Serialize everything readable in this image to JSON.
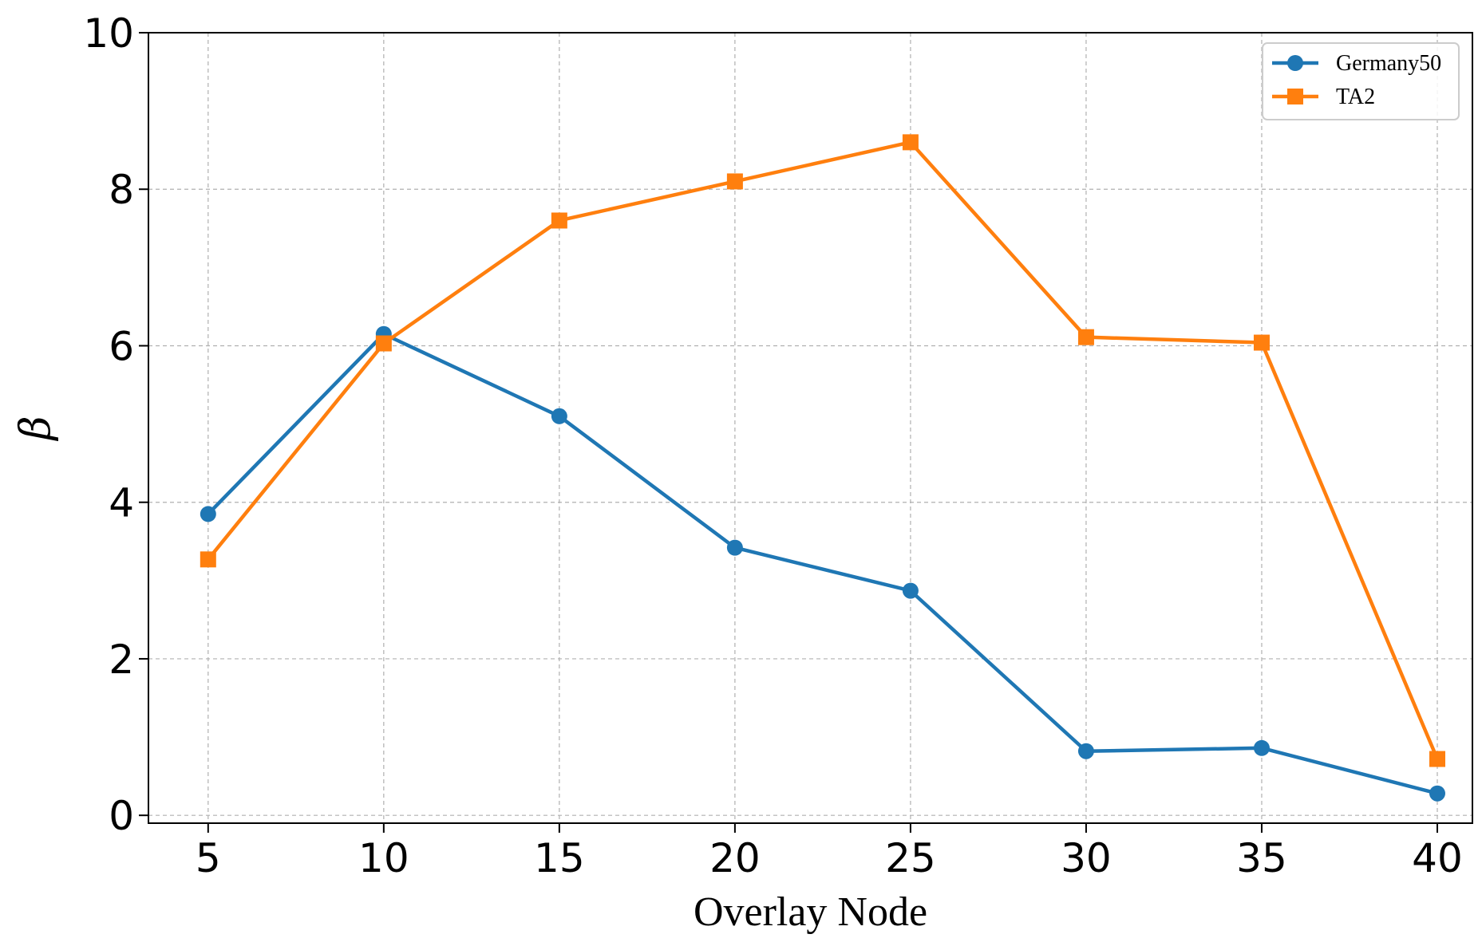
{
  "chart_data": {
    "type": "line",
    "title": "",
    "xlabel": "Overlay Node",
    "ylabel": "β",
    "x": [
      5,
      10,
      15,
      20,
      25,
      30,
      35,
      40
    ],
    "xlim": [
      3.3,
      41
    ],
    "ylim": [
      -0.1,
      10
    ],
    "xticks": [
      5,
      10,
      15,
      20,
      25,
      30,
      35,
      40
    ],
    "yticks": [
      0,
      2,
      4,
      6,
      8,
      10
    ],
    "grid": true,
    "legend_position": "top-right",
    "series": [
      {
        "name": "Germany50",
        "color": "#1f77b4",
        "marker": "circle",
        "values": [
          3.85,
          6.15,
          5.1,
          3.42,
          2.87,
          0.82,
          0.86,
          0.28
        ]
      },
      {
        "name": "TA2",
        "color": "#ff7f0e",
        "marker": "square",
        "values": [
          3.27,
          6.03,
          7.6,
          8.1,
          8.6,
          6.11,
          6.04,
          0.72
        ]
      }
    ]
  }
}
